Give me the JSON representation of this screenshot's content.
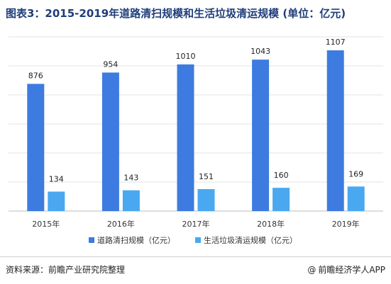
{
  "title": "图表3：2015-2019年道路清扫规模和生活垃圾清运规模 (单位：亿元)",
  "chart_data": {
    "type": "bar",
    "categories": [
      "2015年",
      "2016年",
      "2017年",
      "2018年",
      "2019年"
    ],
    "series": [
      {
        "name": "道路清扫规模（亿元）",
        "values": [
          876,
          954,
          1010,
          1043,
          1107
        ],
        "color": "#3d7be0"
      },
      {
        "name": "生活垃圾清运规模（亿元）",
        "values": [
          134,
          143,
          151,
          160,
          169
        ],
        "color": "#49a8ef"
      }
    ],
    "ylim": [
      0,
      1200
    ],
    "grid": true,
    "legend": "bottom"
  },
  "footer": {
    "source": "资料来源：前瞻产业研究院整理",
    "brand": "前瞻经济学人APP",
    "brand_icon": "at-sign-icon"
  }
}
